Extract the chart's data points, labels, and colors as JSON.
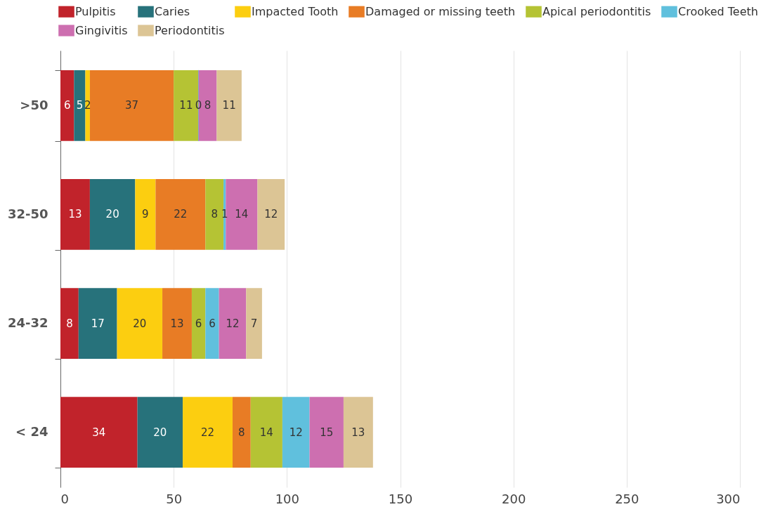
{
  "chart_data": {
    "type": "bar",
    "orientation": "horizontal",
    "stacked": true,
    "data_labels": true,
    "grid": "x",
    "legend": "top left",
    "categories": [
      ">50",
      "32-50",
      "24-32",
      "< 24"
    ],
    "xlim": [
      0,
      300
    ],
    "xticks": [
      0,
      50,
      100,
      150,
      200,
      250,
      300
    ],
    "series": [
      {
        "name": "Pulpitis",
        "color": "#c1232b",
        "values": [
          6,
          13,
          8,
          34
        ]
      },
      {
        "name": "Caries",
        "color": "#27727b",
        "values": [
          5,
          20,
          17,
          20
        ]
      },
      {
        "name": "Impacted Tooth",
        "color": "#fcce10",
        "values": [
          2,
          9,
          20,
          22
        ]
      },
      {
        "name": "Damaged or missing teeth",
        "color": "#e87c25",
        "values": [
          37,
          22,
          13,
          8
        ]
      },
      {
        "name": "Apical periodontitis",
        "color": "#b5c334",
        "values": [
          11,
          8,
          6,
          14
        ]
      },
      {
        "name": "Crooked Teeth",
        "color": "#60c0dd",
        "values": [
          0,
          1,
          6,
          12
        ]
      },
      {
        "name": "Gingivitis",
        "color": "#cd6fb0",
        "values": [
          8,
          14,
          12,
          15
        ]
      },
      {
        "name": "Periodontitis",
        "color": "#dcc595",
        "values": [
          11,
          12,
          7,
          13
        ]
      }
    ]
  }
}
